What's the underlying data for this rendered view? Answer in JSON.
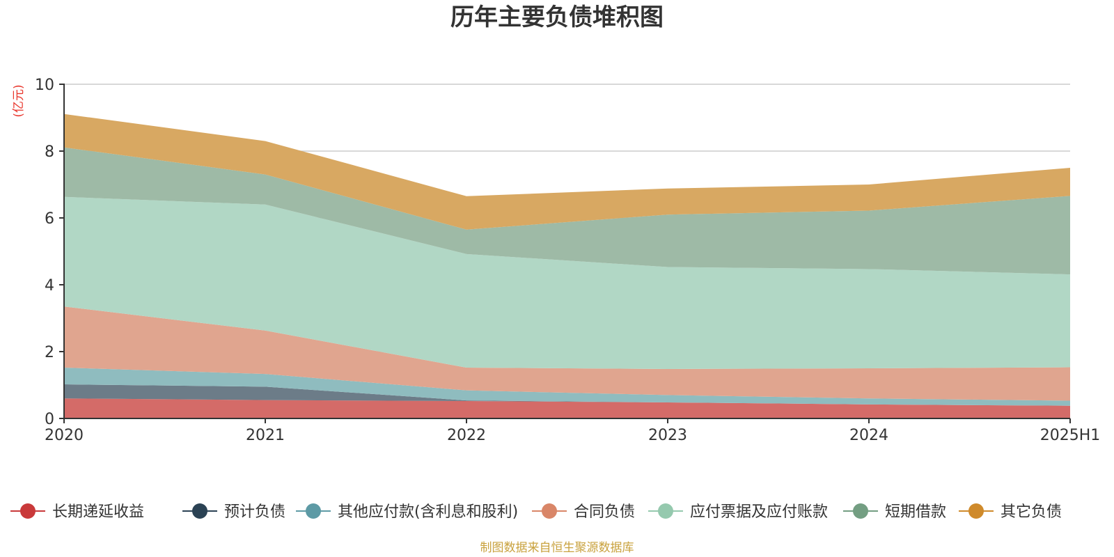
{
  "chart_data": {
    "type": "area",
    "stacked": true,
    "title": "历年主要负债堆积图",
    "unit": "(亿元)",
    "categories": [
      "2020",
      "2021",
      "2022",
      "2023",
      "2024",
      "2025H1"
    ],
    "ylim": [
      0,
      10
    ],
    "yticks": [
      0,
      2,
      4,
      6,
      8,
      10
    ],
    "grid": true,
    "legend_position": "bottom",
    "source": "制图数据来自恒生聚源数据库",
    "series": [
      {
        "name": "长期递延收益",
        "color": "#d46b68",
        "legend_color": "#c9393a",
        "values": [
          0.6,
          0.55,
          0.52,
          0.48,
          0.42,
          0.38
        ]
      },
      {
        "name": "预计负债",
        "color": "#6c7c88",
        "legend_color": "#2b4254",
        "values": [
          0.42,
          0.4,
          0.02,
          0.0,
          0.0,
          0.0
        ]
      },
      {
        "name": "其他应付款(含利息和股利)",
        "color": "#8fbcbf",
        "legend_color": "#5d9aa5",
        "values": [
          0.5,
          0.38,
          0.3,
          0.22,
          0.18,
          0.15
        ]
      },
      {
        "name": "合同负债",
        "color": "#e0a58f",
        "legend_color": "#d98668",
        "values": [
          1.83,
          1.3,
          0.68,
          0.78,
          0.9,
          1.0
        ]
      },
      {
        "name": "应付票据及应付账款",
        "color": "#b1d7c5",
        "legend_color": "#95c9ae",
        "values": [
          3.28,
          3.77,
          3.4,
          3.05,
          2.97,
          2.78
        ]
      },
      {
        "name": "短期借款",
        "color": "#9ebaa6",
        "legend_color": "#739e82",
        "values": [
          1.48,
          0.9,
          0.73,
          1.57,
          1.75,
          2.35
        ]
      },
      {
        "name": "其它负债",
        "color": "#d8a862",
        "legend_color": "#cf8a2b",
        "values": [
          1.0,
          1.0,
          1.0,
          0.78,
          0.78,
          0.84
        ]
      }
    ]
  }
}
